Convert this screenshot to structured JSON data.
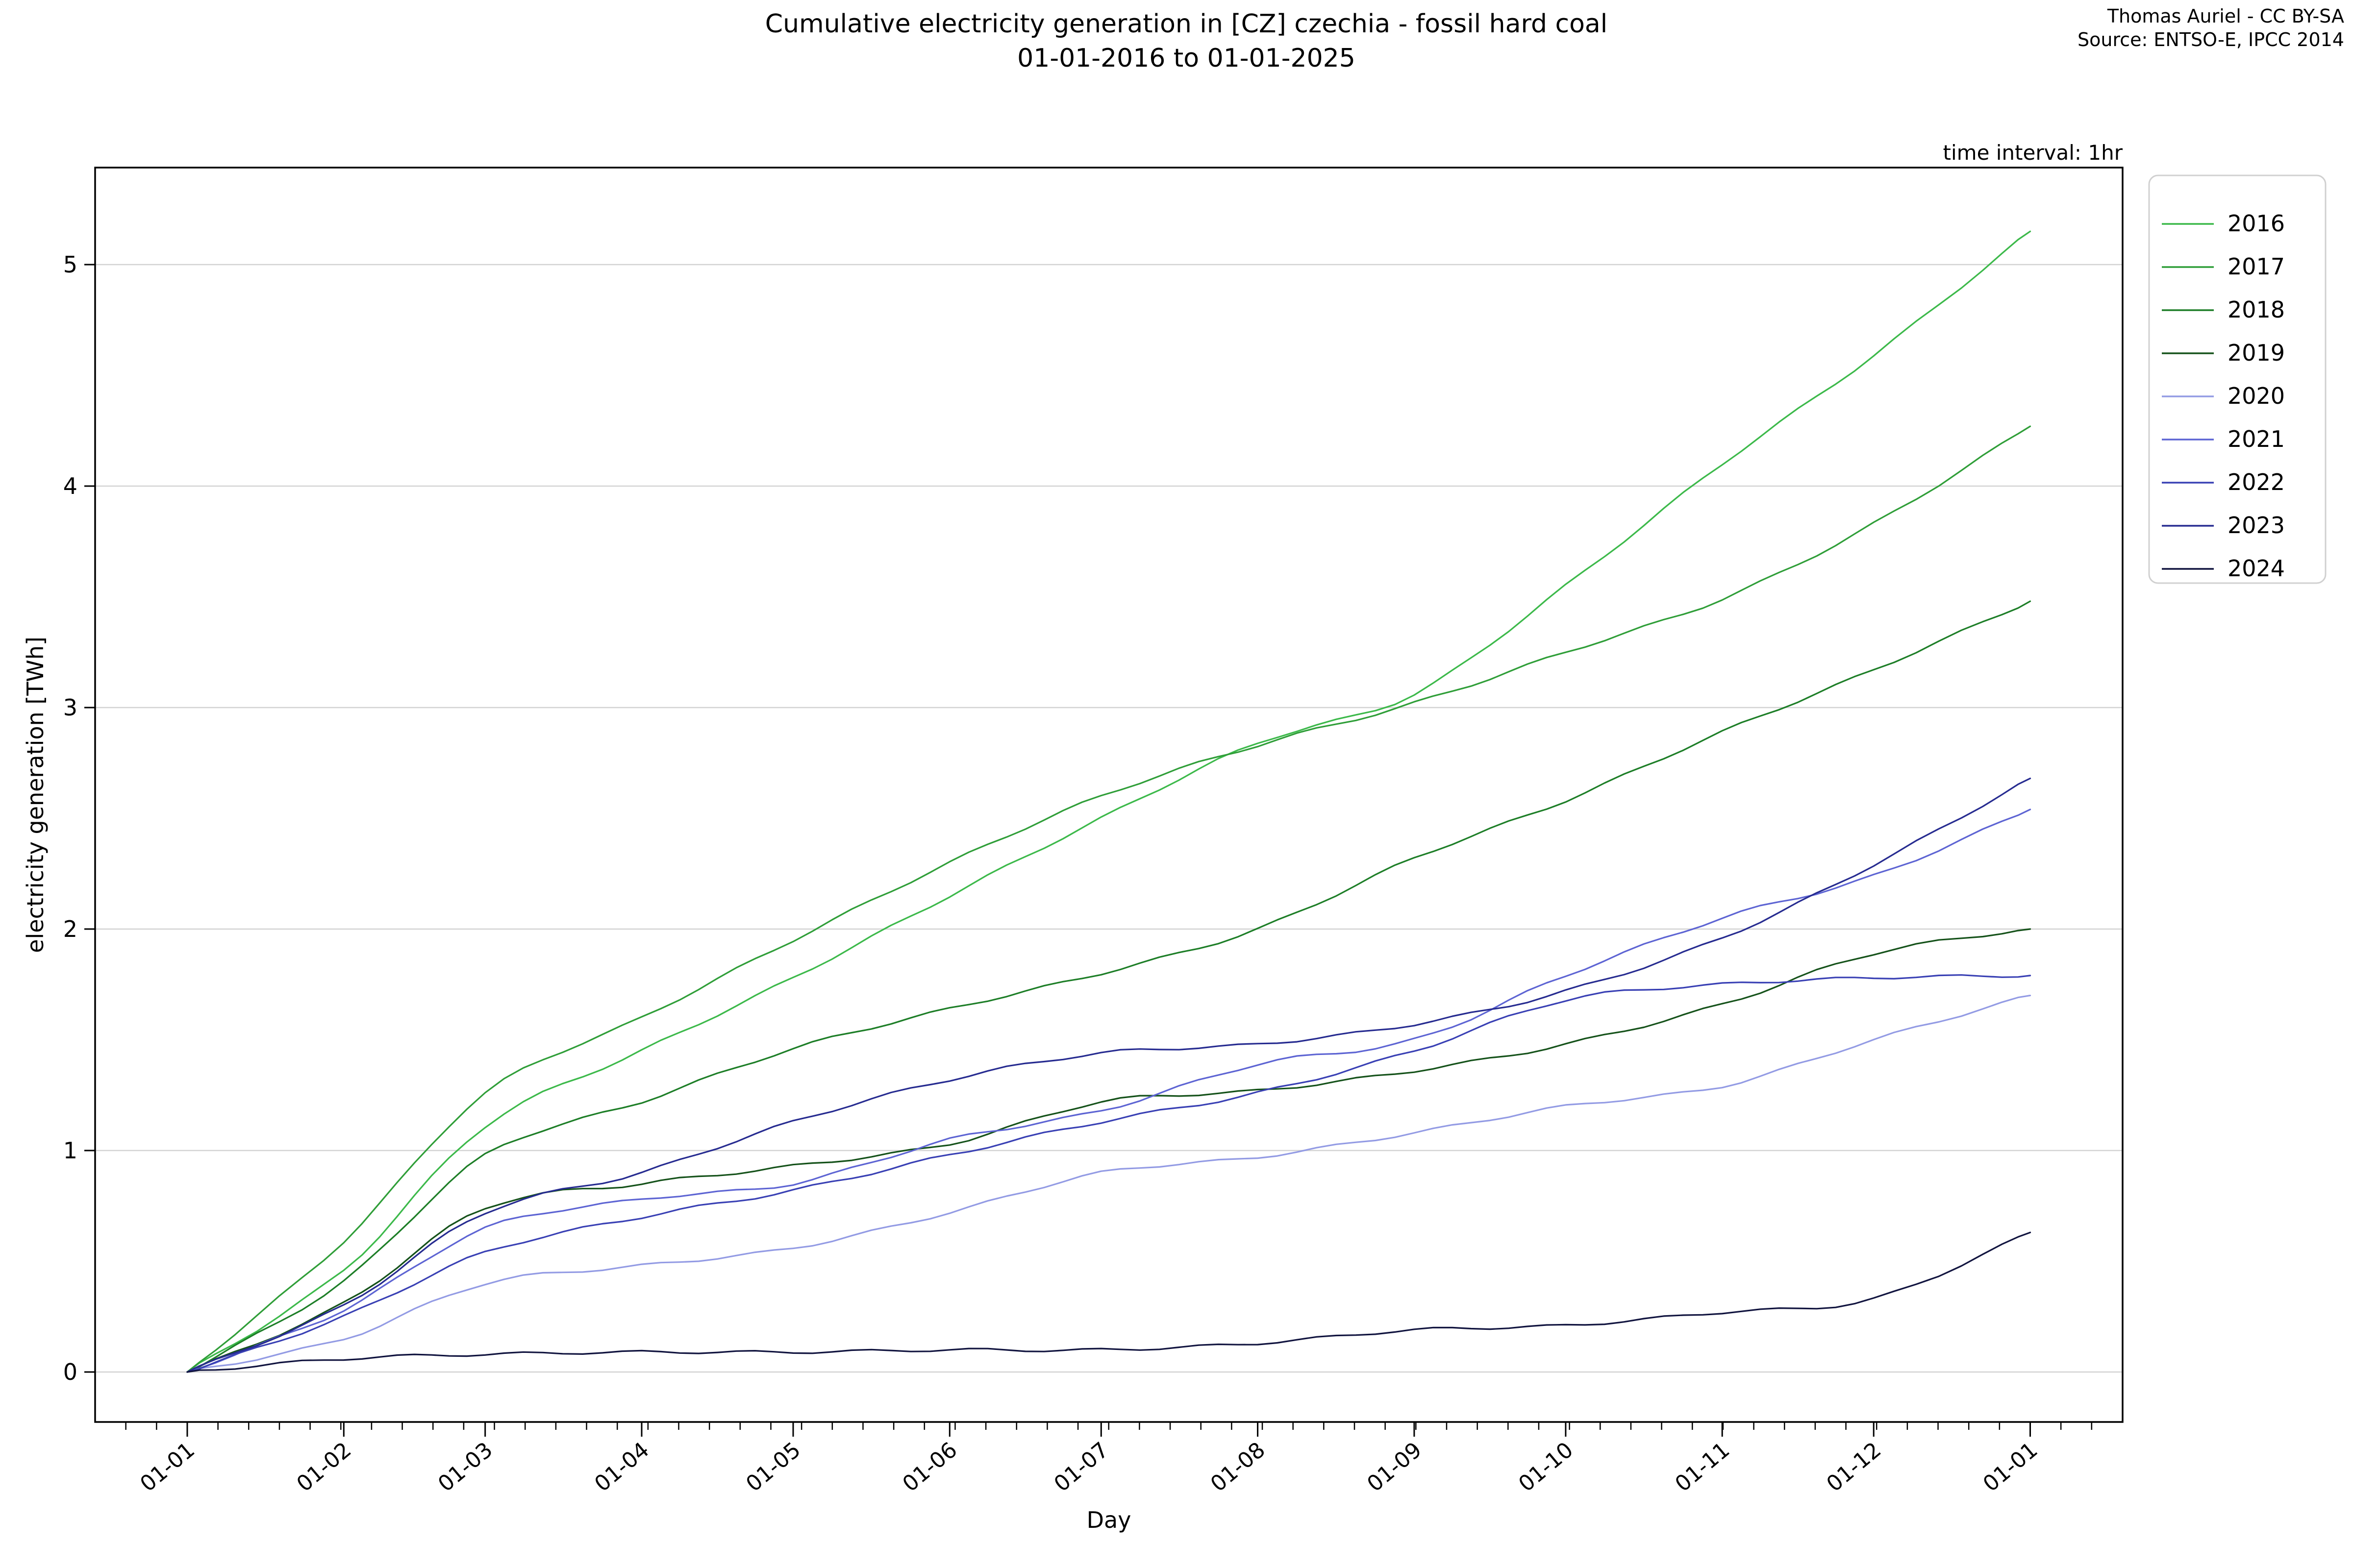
{
  "title": {
    "line1": "Cumulative electricity generation in [CZ] czechia - fossil hard coal",
    "line2": "01-01-2016 to 01-01-2025"
  },
  "attribution": {
    "line1": "Thomas Auriel - CC BY-SA",
    "line2": "Source: ENTSO-E, IPCC 2014"
  },
  "annotations": {
    "time_interval": "time interval: 1hr"
  },
  "axes": {
    "xlabel": "Day",
    "ylabel": "electricity generation [TWh]",
    "y_tick_labels": [
      "0",
      "1",
      "2",
      "3",
      "4",
      "5"
    ],
    "x_tick_labels": [
      "01-01",
      "01-02",
      "01-03",
      "01-04",
      "01-05",
      "01-06",
      "01-07",
      "01-08",
      "01-09",
      "01-10",
      "01-11",
      "01-12",
      "01-01"
    ]
  },
  "colors": {
    "background": "#ffffff",
    "grid": "#d3d3d3",
    "spine": "#000000",
    "legend_border": "#d0d0d0"
  },
  "chart_data": {
    "type": "line",
    "title": "Cumulative electricity generation in [CZ] czechia - fossil hard coal 01-01-2016 to 01-01-2025",
    "xlabel": "Day",
    "ylabel": "electricity generation [TWh]",
    "units": "TWh",
    "grid": "horizontal",
    "legend_position": "upper right, outside plot",
    "ylim": [
      -0.26,
      5.42
    ],
    "y_ticks": [
      0,
      1,
      2,
      3,
      4,
      5
    ],
    "x_tick_labels": [
      "01-01",
      "01-02",
      "01-03",
      "01-04",
      "01-05",
      "01-06",
      "01-07",
      "01-08",
      "01-09",
      "01-10",
      "01-11",
      "01-12",
      "01-01"
    ],
    "x_days": [
      0,
      31,
      59,
      90,
      120,
      151,
      181,
      212,
      243,
      273,
      304,
      334,
      365
    ],
    "x_days_total": 365,
    "series": [
      {
        "name": "2016",
        "color": "#3cb94a",
        "values": [
          0,
          0.46,
          1.11,
          1.45,
          1.78,
          2.15,
          2.5,
          2.84,
          3.06,
          3.55,
          4.1,
          4.59,
          5.15
        ]
      },
      {
        "name": "2017",
        "color": "#2f9e38",
        "values": [
          0,
          0.59,
          1.26,
          1.6,
          1.95,
          2.3,
          2.6,
          2.83,
          3.02,
          3.25,
          3.49,
          3.83,
          4.27
        ]
      },
      {
        "name": "2018",
        "color": "#1d7e27",
        "values": [
          0,
          0.41,
          0.98,
          1.22,
          1.46,
          1.64,
          1.8,
          2.0,
          2.32,
          2.58,
          2.89,
          3.17,
          3.48
        ]
      },
      {
        "name": "2019",
        "color": "#15521a",
        "values": [
          0,
          0.31,
          0.74,
          0.85,
          0.93,
          1.03,
          1.22,
          1.27,
          1.36,
          1.48,
          1.66,
          1.89,
          2.0
        ]
      },
      {
        "name": "2020",
        "color": "#939be4",
        "values": [
          0,
          0.15,
          0.4,
          0.48,
          0.56,
          0.72,
          0.9,
          0.97,
          1.08,
          1.2,
          1.29,
          1.5,
          1.7
        ]
      },
      {
        "name": "2021",
        "color": "#5d64d3",
        "values": [
          0,
          0.28,
          0.65,
          0.78,
          0.85,
          1.05,
          1.18,
          1.39,
          1.5,
          1.79,
          2.05,
          2.24,
          2.54
        ]
      },
      {
        "name": "2022",
        "color": "#3940b4",
        "values": [
          0,
          0.25,
          0.54,
          0.7,
          0.82,
          0.98,
          1.13,
          1.26,
          1.45,
          1.68,
          1.75,
          1.78,
          1.79
        ]
      },
      {
        "name": "2023",
        "color": "#262b90",
        "values": [
          0,
          0.3,
          0.72,
          0.9,
          1.13,
          1.32,
          1.44,
          1.48,
          1.57,
          1.72,
          1.96,
          2.29,
          2.68
        ]
      },
      {
        "name": "2024",
        "color": "#11143f",
        "values": [
          0,
          0.06,
          0.08,
          0.09,
          0.09,
          0.1,
          0.1,
          0.13,
          0.19,
          0.21,
          0.27,
          0.33,
          0.63
        ]
      }
    ]
  }
}
